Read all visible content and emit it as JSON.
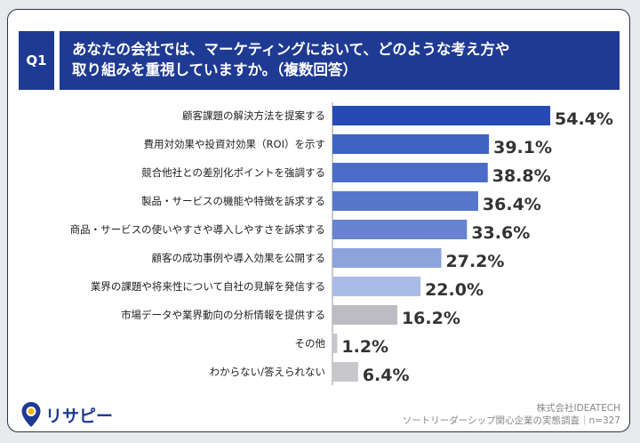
{
  "question": {
    "badge": "Q1",
    "text": "あなたの会社では、マーケティングにおいて、どのような考え方や\n取り組みを重視していますか。（複数回答）"
  },
  "chart_data": {
    "type": "bar",
    "orientation": "horizontal",
    "categories": [
      "顧客課題の解決方法を提案する",
      "費用対効果や投資対効果（ROI）を示す",
      "競合他社との差別化ポイントを強調する",
      "製品・サービスの機能や特徴を訴求する",
      "商品・サービスの使いやすさや導入しやすさを訴求する",
      "顧客の成功事例や導入効果を公開する",
      "業界の課題や将来性について自社の見解を発信する",
      "市場データや業界動向の分析情報を提供する",
      "その他",
      "わからない/答えられない"
    ],
    "values": [
      54.4,
      39.1,
      38.8,
      36.4,
      33.6,
      27.2,
      22.0,
      16.2,
      1.2,
      6.4
    ],
    "value_labels": [
      "54.4%",
      "39.1%",
      "38.8%",
      "36.4%",
      "33.6%",
      "27.2%",
      "22.0%",
      "16.2%",
      "1.2%",
      "6.4%"
    ],
    "bar_colors": [
      "#2549b5",
      "#3f63c4",
      "#4b6dc9",
      "#5876cc",
      "#6884d1",
      "#8da3db",
      "#a9bce6",
      "#bcbcc2",
      "#c7c7cc",
      "#c7c7cc"
    ],
    "unit": "%",
    "xlim": [
      0,
      60
    ],
    "grid": false,
    "legend": "none"
  },
  "footer": {
    "logo_text": "リサピー",
    "credit_line1": "株式会社IDEATECH",
    "credit_line2": "ソートリーダーシップ関心企業の実態調査｜n=327"
  },
  "colors": {
    "header": "#1f3a93",
    "logo_pin": "#1f3a93",
    "logo_dot": "#f2b705"
  },
  "icons": {
    "logo_icon": "location-pin-icon"
  }
}
